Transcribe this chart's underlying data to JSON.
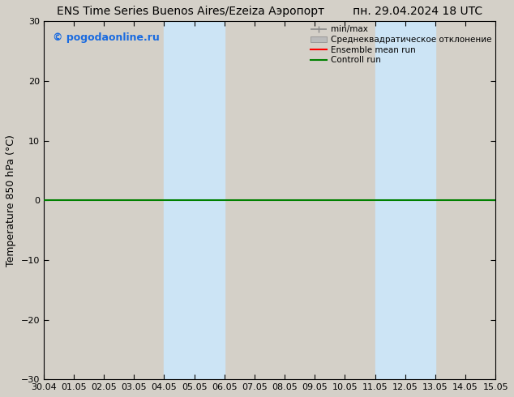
{
  "title": "ENS Time Series Buenos Aires/Ezeiza Аэропорт",
  "date_label": "пн. 29.04.2024 18 UTC",
  "ylabel": "Temperature 850 hPa (°C)",
  "xlabel_ticks": [
    "30.04",
    "01.05",
    "02.05",
    "03.05",
    "04.05",
    "05.05",
    "06.05",
    "07.05",
    "08.05",
    "09.05",
    "10.05",
    "11.05",
    "12.05",
    "13.05",
    "14.05",
    "15.05"
  ],
  "ylim": [
    -30,
    30
  ],
  "yticks": [
    -30,
    -20,
    -10,
    0,
    10,
    20,
    30
  ],
  "shaded_bands": [
    {
      "xstart": 4,
      "xend": 6,
      "color": "#cce4f5"
    },
    {
      "xstart": 11,
      "xend": 13,
      "color": "#cce4f5"
    }
  ],
  "hline_y": 0,
  "hline_color": "#008000",
  "hline_lw": 1.5,
  "watermark_text": "© pogodaonline.ru",
  "watermark_color": "#1a6be0",
  "legend_labels": [
    "min/max",
    "Среднеквадратическое отклонение",
    "Ensemble mean run",
    "Controll run"
  ],
  "bg_color": "#d4d0c8",
  "plot_bg_color": "#d4d0c8",
  "fig_bg_color": "#d4d0c8",
  "title_fontsize": 10,
  "tick_fontsize": 8,
  "ylabel_fontsize": 9,
  "n_xticks": 16,
  "legend_line_color_minmax": "#888888",
  "legend_fill_std": "#bbbbbb",
  "legend_line_ens": "red",
  "legend_line_ctrl": "#008000"
}
